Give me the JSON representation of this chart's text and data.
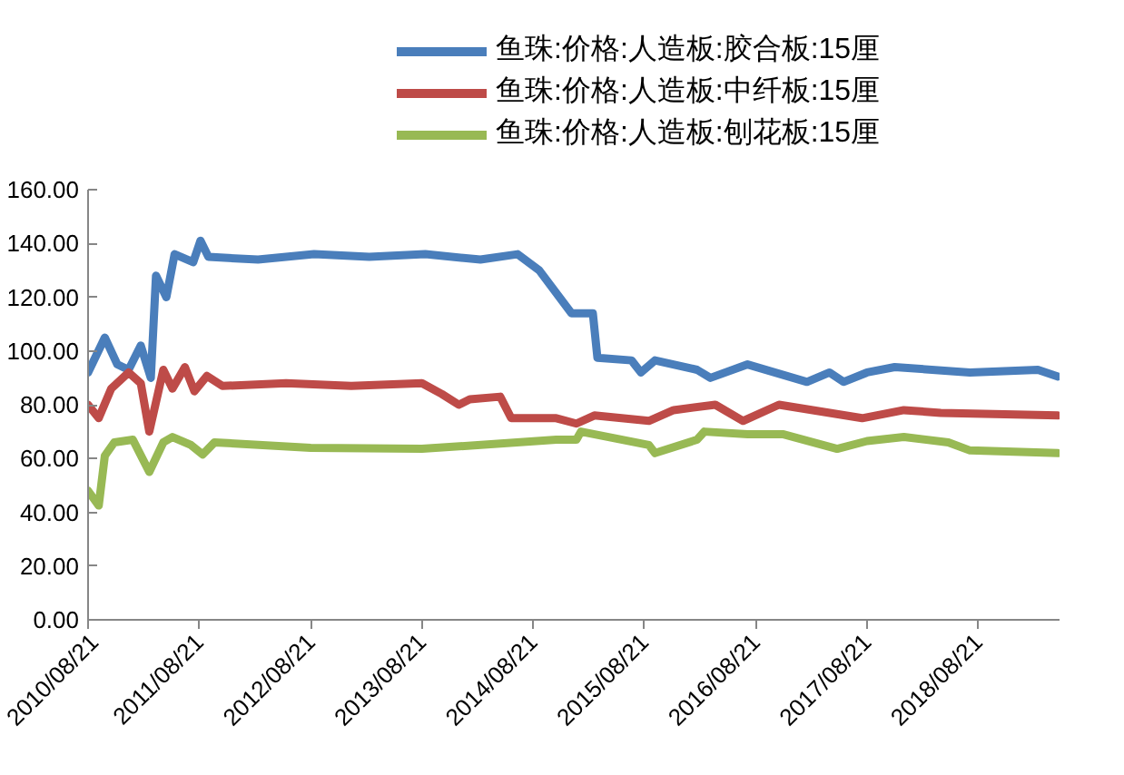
{
  "chart_data": {
    "type": "line",
    "legend": "top",
    "grid": false,
    "marker": "none",
    "line_style": "solid",
    "ylim": [
      0,
      160
    ],
    "yticks": [
      {
        "value": 0,
        "label": "0.00"
      },
      {
        "value": 20,
        "label": "20.00"
      },
      {
        "value": 40,
        "label": "40.00"
      },
      {
        "value": 60,
        "label": "60.00"
      },
      {
        "value": 80,
        "label": "80.00"
      },
      {
        "value": 100,
        "label": "100.00"
      },
      {
        "value": 120,
        "label": "120.00"
      },
      {
        "value": 140,
        "label": "140.00"
      },
      {
        "value": 160,
        "label": "160.00"
      }
    ],
    "xlim": [
      "2010-08-21",
      "2019-05-15"
    ],
    "xticks": [
      {
        "value": "2010-08-21",
        "label": "2010/08/21"
      },
      {
        "value": "2011-08-21",
        "label": "2011/08/21"
      },
      {
        "value": "2012-08-21",
        "label": "2012/08/21"
      },
      {
        "value": "2013-08-21",
        "label": "2013/08/21"
      },
      {
        "value": "2014-08-21",
        "label": "2014/08/21"
      },
      {
        "value": "2015-08-21",
        "label": "2015/08/21"
      },
      {
        "value": "2016-08-21",
        "label": "2016/08/21"
      },
      {
        "value": "2017-08-21",
        "label": "2017/08/21"
      },
      {
        "value": "2018-08-21",
        "label": "2018/08/21"
      }
    ],
    "series": [
      {
        "name": "鱼珠:价格:人造板:胶合板:15厘",
        "color": "#4a7ebb",
        "x": [
          "2010-08-21",
          "2010-10-15",
          "2010-11-25",
          "2011-01-01",
          "2011-02-10",
          "2011-03-15",
          "2011-04-01",
          "2011-05-05",
          "2011-06-01",
          "2011-08-01",
          "2011-08-25",
          "2011-09-20",
          "2012-03-01",
          "2012-09-01",
          "2013-03-01",
          "2013-09-01",
          "2014-03-01",
          "2014-07-01",
          "2014-09-10",
          "2014-12-25",
          "2015-03-05",
          "2015-03-20",
          "2015-07-10",
          "2015-08-10",
          "2015-09-25",
          "2016-02-10",
          "2016-03-25",
          "2016-07-25",
          "2017-02-05",
          "2017-04-20",
          "2017-06-05",
          "2017-08-21",
          "2017-11-20",
          "2018-07-25",
          "2019-03-05",
          "2019-05-10"
        ],
        "values": [
          92,
          105,
          95,
          93,
          102,
          90,
          128,
          120,
          136,
          133,
          141,
          135,
          134,
          136,
          135,
          136,
          134,
          136,
          130,
          114,
          114,
          97.5,
          96.5,
          92,
          96.5,
          93,
          90,
          95,
          88.5,
          92,
          88.5,
          92,
          94,
          92,
          93,
          90.5
        ]
      },
      {
        "name": "鱼珠:价格:人造板:中纤板:15厘",
        "color": "#be4b48",
        "x": [
          "2010-08-21",
          "2010-09-25",
          "2010-11-05",
          "2011-01-01",
          "2011-02-10",
          "2011-03-10",
          "2011-04-25",
          "2011-05-25",
          "2011-07-05",
          "2011-08-05",
          "2011-09-15",
          "2011-11-05",
          "2012-06-01",
          "2013-01-01",
          "2013-08-21",
          "2013-10-25",
          "2013-12-20",
          "2014-01-25",
          "2014-05-05",
          "2014-06-10",
          "2014-11-05",
          "2015-01-10",
          "2015-03-10",
          "2015-09-05",
          "2015-11-25",
          "2016-04-10",
          "2016-07-10",
          "2016-11-05",
          "2017-08-05",
          "2017-12-20",
          "2018-04-20",
          "2019-05-10"
        ],
        "values": [
          80,
          75,
          86,
          92,
          88,
          70,
          93,
          86,
          94,
          85,
          90.7,
          87,
          88,
          87,
          88,
          84,
          80,
          82,
          83,
          75,
          75,
          73,
          76,
          74,
          78,
          80,
          74,
          80,
          75,
          78,
          77,
          76
        ]
      },
      {
        "name": "鱼珠:价格:人造板:刨花板:15厘",
        "color": "#98b954",
        "x": [
          "2010-08-21",
          "2010-09-25",
          "2010-10-15",
          "2010-11-15",
          "2011-01-15",
          "2011-03-10",
          "2011-04-25",
          "2011-05-25",
          "2011-07-25",
          "2011-09-01",
          "2011-10-10",
          "2012-08-21",
          "2013-08-21",
          "2014-11-05",
          "2015-01-10",
          "2015-01-25",
          "2015-09-05",
          "2015-09-25",
          "2016-02-10",
          "2016-03-05",
          "2016-07-25",
          "2016-11-20",
          "2017-05-15",
          "2017-08-21",
          "2017-12-20",
          "2018-05-15",
          "2018-07-25",
          "2019-05-10"
        ],
        "values": [
          48,
          42.5,
          61,
          66,
          67,
          55,
          66,
          68,
          65,
          61.5,
          66,
          64,
          63.6,
          67,
          67,
          70,
          65,
          62,
          67,
          70,
          69,
          69,
          63.6,
          66.5,
          68,
          66,
          63,
          62
        ]
      }
    ]
  }
}
